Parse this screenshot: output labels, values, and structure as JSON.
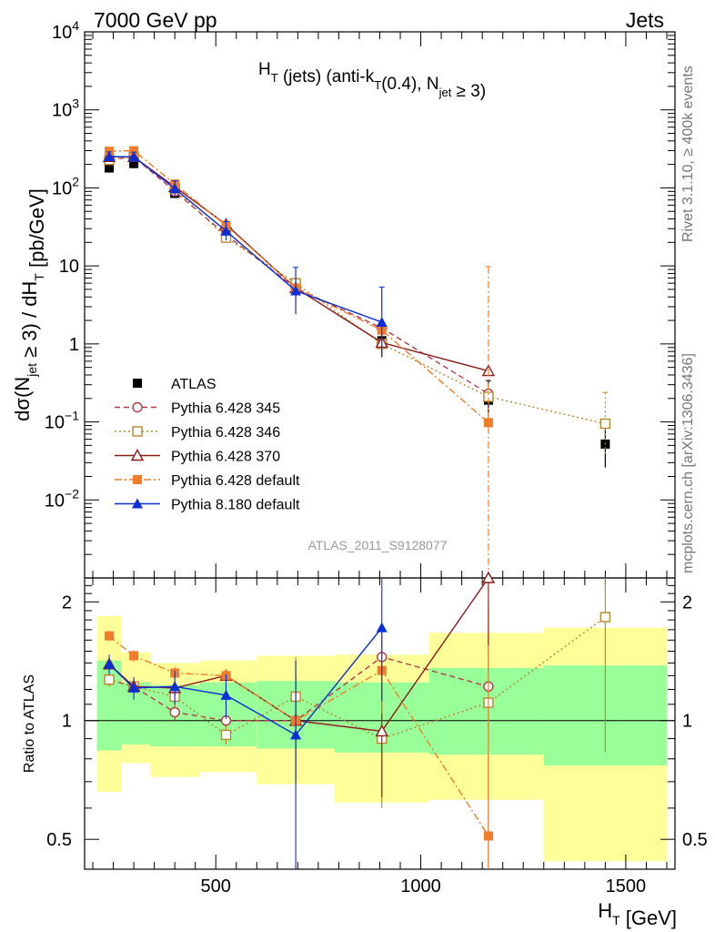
{
  "header": {
    "left": "7000 GeV pp",
    "right": "Jets"
  },
  "side_labels": {
    "rivet": "Rivet 3.1.10, ≥ 400k events",
    "mcplots": "mcplots.cern.ch [arXiv:1306.3436]"
  },
  "analysis_id": "ATLAS_2011_S9128077",
  "chart_data": [
    {
      "type": "line",
      "panel": "main",
      "title": "H_T (jets) (anti-k_T(0.4), N_jet ≥ 3)",
      "ylabel": "dσ(N_jet ≥ 3) / dH_T [pb/GeV]",
      "yscale": "log",
      "ylim": [
        0.001,
        10000
      ],
      "xlim": [
        180,
        1620
      ],
      "yticks": [
        "10^-2",
        "10^-1",
        "1",
        "10",
        "10^2",
        "10^3",
        "10^4"
      ],
      "legend_position": "lower-left",
      "series": [
        {
          "name": "ATLAS",
          "color": "#000000",
          "marker": "square",
          "x": [
            240,
            300,
            400,
            525,
            695,
            905,
            1165,
            1450
          ],
          "y": [
            180,
            205,
            85,
            25,
            5.2,
            1.1,
            0.19,
            0.052
          ],
          "yerr": [
            0.06,
            0.06,
            0.06,
            0.08,
            0.12,
            0.2,
            0.25,
            0.3
          ]
        },
        {
          "name": "Pythia 6.428 345",
          "color": "#b23a48",
          "marker": "circle-open",
          "linestyle": "dashed",
          "x": [
            240,
            300,
            400,
            525,
            695,
            905,
            1165
          ],
          "y": [
            228,
            250,
            90,
            25,
            5.2,
            1.6,
            0.23
          ]
        },
        {
          "name": "Pythia 6.428 346",
          "color": "#b8862b",
          "marker": "square-open",
          "linestyle": "dotted",
          "x": [
            240,
            300,
            400,
            525,
            695,
            905,
            1165,
            1450
          ],
          "y": [
            228,
            250,
            98,
            23,
            6.0,
            1.0,
            0.21,
            0.095
          ],
          "yerr": [
            0,
            0,
            0,
            0,
            0,
            0,
            0,
            0.4
          ]
        },
        {
          "name": "Pythia 6.428 370",
          "color": "#8b1a1a",
          "marker": "triangle-open",
          "linestyle": "solid",
          "x": [
            240,
            300,
            400,
            525,
            695,
            905,
            1165
          ],
          "y": [
            250,
            250,
            103,
            34,
            5.2,
            1.04,
            0.45
          ]
        },
        {
          "name": "Pythia 6.428 default",
          "color": "#f07c2c",
          "marker": "square",
          "linestyle": "dashdot",
          "x": [
            240,
            300,
            400,
            525,
            695,
            905,
            1165
          ],
          "y": [
            295,
            300,
            112,
            33,
            5.2,
            1.5,
            0.098
          ],
          "yerr": [
            0,
            0,
            0,
            0,
            0,
            0,
            2.0
          ]
        },
        {
          "name": "Pythia 8.180 default",
          "color": "#0b2ed6",
          "marker": "triangle",
          "linestyle": "solid",
          "x": [
            240,
            300,
            400,
            525,
            695,
            905
          ],
          "y": [
            252,
            250,
            98,
            28,
            4.8,
            1.9
          ],
          "yerr": [
            0.06,
            0.06,
            0.1,
            0.12,
            0.3,
            0.45
          ]
        }
      ]
    },
    {
      "type": "line",
      "panel": "ratio",
      "xlabel": "H_T [GeV]",
      "ylabel": "Ratio to ATLAS",
      "yscale": "log",
      "ylim": [
        0.42,
        2.3
      ],
      "xlim": [
        180,
        1620
      ],
      "yticks": [
        0.5,
        1,
        2
      ],
      "xticks": [
        500,
        1000,
        1500
      ],
      "bands": {
        "edges": [
          210,
          270,
          340,
          460,
          600,
          790,
          1020,
          1300,
          1600
        ],
        "outer_low": [
          0.66,
          0.78,
          0.72,
          0.74,
          0.69,
          0.62,
          0.63,
          0.44
        ],
        "outer_high": [
          1.84,
          1.49,
          1.4,
          1.42,
          1.46,
          1.47,
          1.67,
          1.72
        ],
        "inner_low": [
          0.84,
          0.87,
          0.86,
          0.86,
          0.85,
          0.83,
          0.82,
          0.77
        ],
        "inner_high": [
          1.42,
          1.25,
          1.23,
          1.25,
          1.26,
          1.25,
          1.36,
          1.38
        ],
        "outer_color": "#ffff99",
        "inner_color": "#99ff99"
      },
      "series": [
        {
          "name": "Pythia 6.428 345",
          "color": "#b23a48",
          "marker": "circle-open",
          "linestyle": "dashed",
          "x": [
            240,
            300,
            400,
            525,
            695,
            905,
            1165
          ],
          "y": [
            1.27,
            1.22,
            1.05,
            1.0,
            1.0,
            1.45,
            1.22
          ],
          "yerr": [
            0.05,
            0.05,
            0.05,
            0.05,
            0.3,
            0.3,
            0.8
          ]
        },
        {
          "name": "Pythia 6.428 346",
          "color": "#b8862b",
          "marker": "square-open",
          "linestyle": "dotted",
          "x": [
            240,
            300,
            400,
            525,
            695,
            905,
            1165,
            1450
          ],
          "y": [
            1.27,
            1.22,
            1.15,
            0.92,
            1.15,
            0.9,
            1.11,
            1.83
          ],
          "yerr": [
            0.05,
            0.05,
            0.05,
            0.05,
            0.3,
            0.3,
            0.8,
            1.0
          ]
        },
        {
          "name": "Pythia 6.428 370",
          "color": "#8b1a1a",
          "marker": "triangle-open",
          "linestyle": "solid",
          "x": [
            240,
            300,
            400,
            525,
            695,
            905,
            1165
          ],
          "y": [
            1.39,
            1.22,
            1.21,
            1.3,
            1.0,
            0.94,
            2.35
          ],
          "yerr": [
            0.05,
            0.05,
            0.05,
            0.05,
            0.3,
            0.3,
            0.8
          ]
        },
        {
          "name": "Pythia 6.428 default",
          "color": "#f07c2c",
          "marker": "square",
          "linestyle": "dashdot",
          "x": [
            240,
            300,
            400,
            525,
            695,
            905,
            1165
          ],
          "y": [
            1.64,
            1.46,
            1.32,
            1.3,
            1.0,
            1.34,
            0.51
          ],
          "yerr": [
            0.05,
            0.05,
            0.05,
            0.05,
            0.3,
            0.3,
            0.8
          ]
        },
        {
          "name": "Pythia 8.180 default",
          "color": "#0b2ed6",
          "marker": "triangle",
          "linestyle": "solid",
          "x": [
            240,
            300,
            400,
            525,
            695,
            905
          ],
          "y": [
            1.39,
            1.21,
            1.22,
            1.16,
            0.92,
            1.72
          ],
          "yerr": [
            0.08,
            0.08,
            0.12,
            0.15,
            0.5,
            0.6
          ]
        }
      ]
    }
  ]
}
